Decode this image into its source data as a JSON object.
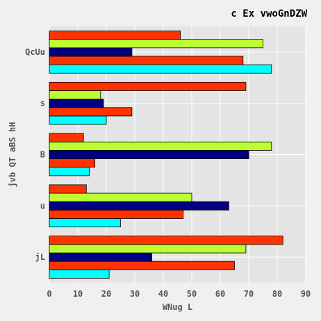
{
  "chart_data": {
    "type": "bar",
    "orientation": "horizontal",
    "title": "c Ex vwoGnDZW",
    "xlabel": "WNug L",
    "ylabel": "jvb QT aBS hH",
    "categories": [
      "jL",
      "u",
      "B",
      "s",
      "QcUu"
    ],
    "xlim": [
      0,
      90
    ],
    "xticks": [
      0,
      10,
      20,
      30,
      40,
      50,
      60,
      70,
      80,
      90
    ],
    "grid": true,
    "series": [
      {
        "color": "#00ffff",
        "values": [
          21,
          25,
          14,
          20,
          78
        ]
      },
      {
        "color": "#ff3300",
        "values": [
          65,
          47,
          16,
          29,
          68
        ]
      },
      {
        "color": "#000080",
        "values": [
          36,
          63,
          70,
          19,
          29
        ]
      },
      {
        "color": "#bbff33",
        "values": [
          69,
          50,
          78,
          18,
          75
        ]
      },
      {
        "color": "#ff3300",
        "values": [
          82,
          13,
          12,
          69,
          46
        ]
      }
    ]
  },
  "colors": {
    "plot_background": "#e5e5e5",
    "figure_background": "#f0f0f0",
    "grid": "#ffffff"
  }
}
